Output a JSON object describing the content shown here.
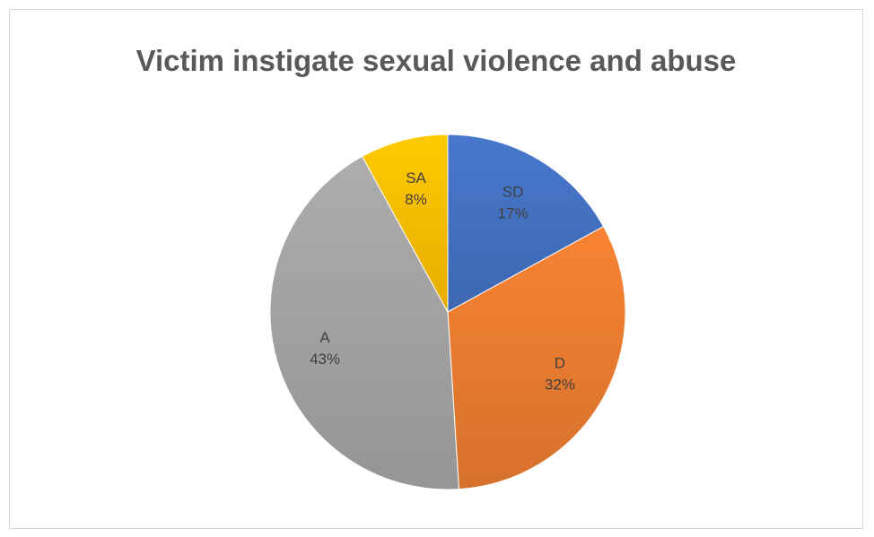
{
  "chart_data": {
    "type": "pie",
    "title": "Victim instigate sexual violence and abuse",
    "slices": [
      {
        "category": "SD",
        "value": 17,
        "label": "17%",
        "color": "#4472c4"
      },
      {
        "category": "D",
        "value": 32,
        "label": "32%",
        "color": "#ed7d31"
      },
      {
        "category": "A",
        "value": 43,
        "label": "43%",
        "color": "#a5a5a5"
      },
      {
        "category": "SA",
        "value": 8,
        "label": "8%",
        "color": "#ffc000"
      }
    ],
    "legend": "none"
  }
}
